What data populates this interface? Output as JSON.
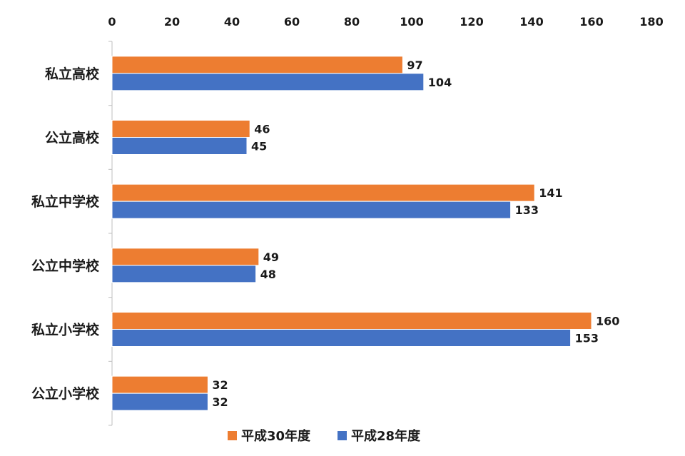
{
  "chart_data": {
    "type": "bar",
    "orientation": "horizontal",
    "categories": [
      "私立高校",
      "公立高校",
      "私立中学校",
      "公立中学校",
      "私立小学校",
      "公立小学校"
    ],
    "series": [
      {
        "name": "平成30年度",
        "color": "#ed7d31",
        "values": [
          97,
          46,
          141,
          49,
          160,
          32
        ]
      },
      {
        "name": "平成28年度",
        "color": "#4472c4",
        "values": [
          104,
          45,
          133,
          48,
          153,
          32
        ]
      }
    ],
    "xlim": [
      0,
      180
    ],
    "x_ticks": [
      0,
      20,
      40,
      60,
      80,
      100,
      120,
      140,
      160,
      180
    ],
    "x_axis_position": "top",
    "grid": false,
    "legend_position": "bottom",
    "data_labels": true,
    "title": "",
    "xlabel": "",
    "ylabel": ""
  }
}
